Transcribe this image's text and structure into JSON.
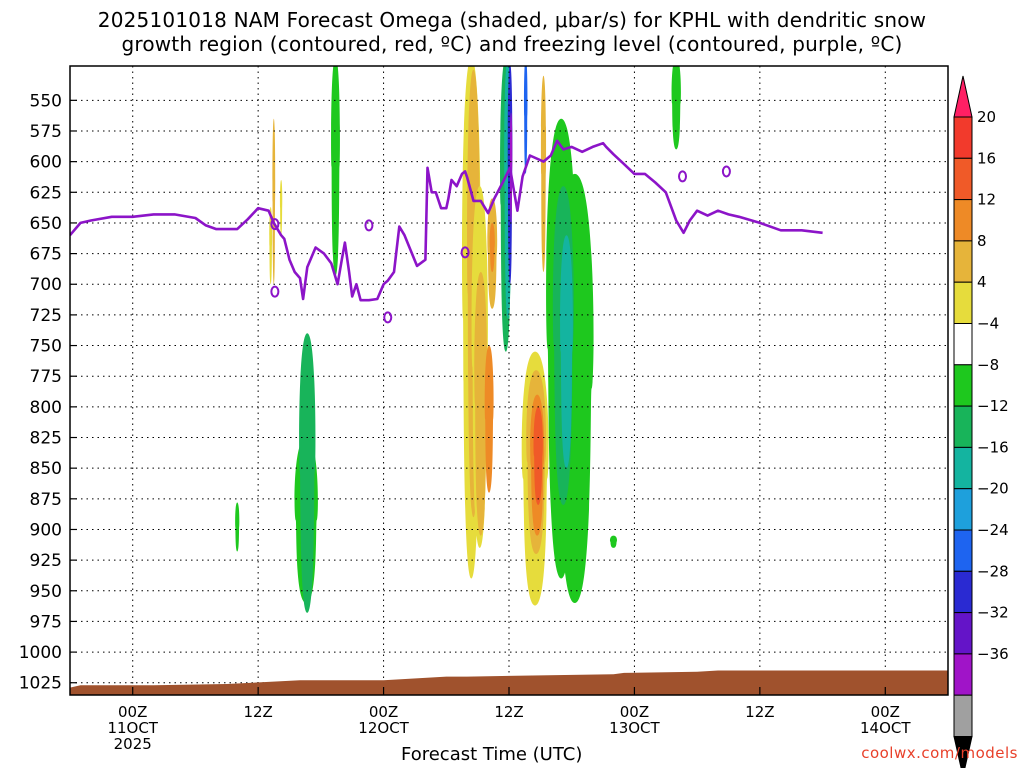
{
  "title": {
    "line1": "2025101018 NAM Forecast Omega (shaded, μbar/s) for KPHL with dendritic snow",
    "line2": "growth region (contoured, red, ºC) and freezing level (contoured, purple, ºC)"
  },
  "credit": "coolwx.com/models",
  "chart_data": {
    "type": "heatmap",
    "title": "2025101018 NAM Forecast Omega (shaded, μbar/s) for KPHL with dendritic snow growth region (contoured, red, ºC) and freezing level (contoured, purple, ºC)",
    "xlabel": "Forecast Time (UTC)",
    "ylabel": "",
    "x_axis": {
      "ticks": [
        {
          "hour": 6,
          "lines": [
            "00Z",
            "11OCT",
            "2025"
          ]
        },
        {
          "hour": 18,
          "lines": [
            "12Z"
          ]
        },
        {
          "hour": 30,
          "lines": [
            "00Z",
            "12OCT"
          ]
        },
        {
          "hour": 42,
          "lines": [
            "12Z"
          ]
        },
        {
          "hour": 54,
          "lines": [
            "00Z",
            "13OCT"
          ]
        },
        {
          "hour": 66,
          "lines": [
            "12Z"
          ]
        },
        {
          "hour": 78,
          "lines": [
            "00Z",
            "14OCT"
          ]
        }
      ],
      "range_hours": [
        0,
        84
      ]
    },
    "y_axis": {
      "unit": "hPa",
      "reversed": true,
      "ticks": [
        550,
        575,
        600,
        625,
        650,
        675,
        700,
        725,
        750,
        775,
        800,
        825,
        850,
        875,
        900,
        925,
        950,
        975,
        1000,
        1025
      ],
      "range": [
        522,
        1035
      ]
    },
    "grid": true,
    "colorbar": {
      "ticks": [
        "20",
        "16",
        "12",
        "8",
        "4",
        "−4",
        "−8",
        "−12",
        "−16",
        "−20",
        "−24",
        "−28",
        "−32",
        "−36"
      ],
      "bins": [
        {
          "color": "#ff1f64"
        },
        {
          "color": "#f23a2c"
        },
        {
          "color": "#f05a28"
        },
        {
          "color": "#ee8a26"
        },
        {
          "color": "#e6b43a"
        },
        {
          "color": "#e6dc3c"
        },
        {
          "color": "#ffffff"
        },
        {
          "color": "#1ec81e"
        },
        {
          "color": "#18b45a"
        },
        {
          "color": "#14b4a0"
        },
        {
          "color": "#1ea0dc"
        },
        {
          "color": "#1e64f0"
        },
        {
          "color": "#2a2ad2"
        },
        {
          "color": "#6414c8"
        },
        {
          "color": "#a014c8"
        },
        {
          "color": "#a0a0a0"
        },
        {
          "color": "#000000"
        }
      ]
    },
    "omega_regions": [
      {
        "hour": 19.2,
        "p_top": 637,
        "p_bottom": 700,
        "halfwidth": 0.12,
        "value": 5
      },
      {
        "hour": 19.5,
        "p_top": 565,
        "p_bottom": 700,
        "halfwidth": 0.12,
        "value": 6
      },
      {
        "hour": 20.2,
        "p_top": 615,
        "p_bottom": 660,
        "halfwidth": 0.1,
        "value": 5
      },
      {
        "hour": 16.0,
        "p_top": 878,
        "p_bottom": 918,
        "halfwidth": 0.18,
        "value": -6
      },
      {
        "hour": 22.6,
        "p_top": 825,
        "p_bottom": 960,
        "halfwidth": 1.0,
        "value": -6
      },
      {
        "hour": 22.7,
        "p_top": 740,
        "p_bottom": 968,
        "halfwidth": 0.7,
        "value": -8
      },
      {
        "hour": 22.8,
        "p_top": 760,
        "p_bottom": 928,
        "halfwidth": 0.45,
        "value": -10
      },
      {
        "hour": 25.4,
        "p_top": 515,
        "p_bottom": 693,
        "halfwidth": 0.38,
        "value": -6
      },
      {
        "hour": 38.4,
        "p_top": 515,
        "p_bottom": 940,
        "halfwidth": 0.8,
        "value": 5
      },
      {
        "hour": 38.6,
        "p_top": 525,
        "p_bottom": 890,
        "halfwidth": 0.55,
        "value": 7
      },
      {
        "hour": 39.2,
        "p_top": 620,
        "p_bottom": 915,
        "halfwidth": 0.7,
        "value": 5
      },
      {
        "hour": 39.3,
        "p_top": 690,
        "p_bottom": 905,
        "halfwidth": 0.55,
        "value": 7
      },
      {
        "hour": 40.1,
        "p_top": 750,
        "p_bottom": 870,
        "halfwidth": 0.38,
        "value": 11
      },
      {
        "hour": 40.4,
        "p_top": 630,
        "p_bottom": 720,
        "halfwidth": 0.42,
        "value": 7
      },
      {
        "hour": 40.4,
        "p_top": 650,
        "p_bottom": 690,
        "halfwidth": 0.22,
        "value": 9
      },
      {
        "hour": 41.7,
        "p_top": 515,
        "p_bottom": 755,
        "halfwidth": 0.5,
        "value": -8
      },
      {
        "hour": 41.9,
        "p_top": 515,
        "p_bottom": 728,
        "halfwidth": 0.32,
        "value": -14
      },
      {
        "hour": 42.1,
        "p_top": 520,
        "p_bottom": 700,
        "halfwidth": 0.2,
        "value": -26
      },
      {
        "hour": 42.2,
        "p_top": 560,
        "p_bottom": 650,
        "halfwidth": 0.1,
        "value": -34
      },
      {
        "hour": 43.6,
        "p_top": 515,
        "p_bottom": 610,
        "halfwidth": 0.15,
        "value": -22
      },
      {
        "hour": 44.5,
        "p_top": 755,
        "p_bottom": 962,
        "halfwidth": 1.15,
        "value": 5
      },
      {
        "hour": 44.6,
        "p_top": 770,
        "p_bottom": 920,
        "halfwidth": 0.85,
        "value": 7
      },
      {
        "hour": 44.7,
        "p_top": 790,
        "p_bottom": 905,
        "halfwidth": 0.6,
        "value": 9
      },
      {
        "hour": 44.8,
        "p_top": 800,
        "p_bottom": 880,
        "halfwidth": 0.4,
        "value": 13
      },
      {
        "hour": 45.3,
        "p_top": 530,
        "p_bottom": 690,
        "halfwidth": 0.22,
        "value": 6
      },
      {
        "hour": 47.0,
        "p_top": 565,
        "p_bottom": 940,
        "halfwidth": 1.3,
        "value": -6
      },
      {
        "hour": 48.3,
        "p_top": 610,
        "p_bottom": 960,
        "halfwidth": 1.6,
        "value": -6
      },
      {
        "hour": 47.2,
        "p_top": 620,
        "p_bottom": 880,
        "halfwidth": 0.9,
        "value": -10
      },
      {
        "hour": 47.5,
        "p_top": 660,
        "p_bottom": 850,
        "halfwidth": 0.55,
        "value": -14
      },
      {
        "hour": 52.0,
        "p_top": 905,
        "p_bottom": 915,
        "halfwidth": 0.3,
        "value": -6
      },
      {
        "hour": 58.0,
        "p_top": 515,
        "p_bottom": 590,
        "halfwidth": 0.4,
        "value": -6
      }
    ],
    "freezing_level_hpa": [
      [
        0,
        660
      ],
      [
        1,
        650
      ],
      [
        2,
        648
      ],
      [
        4,
        645
      ],
      [
        6,
        645
      ],
      [
        8,
        643
      ],
      [
        10,
        643
      ],
      [
        12,
        646
      ],
      [
        13,
        652
      ],
      [
        14,
        655
      ],
      [
        15,
        655
      ],
      [
        16,
        655
      ],
      [
        17,
        647
      ],
      [
        18,
        638
      ],
      [
        19,
        640
      ],
      [
        19.5,
        650
      ],
      [
        20.2,
        660
      ],
      [
        20.5,
        663
      ],
      [
        21,
        680
      ],
      [
        21.5,
        690
      ],
      [
        22,
        695
      ],
      [
        22.3,
        712
      ],
      [
        22.7,
        686
      ],
      [
        23.5,
        670
      ],
      [
        24.3,
        675
      ],
      [
        25,
        683
      ],
      [
        25.6,
        700
      ],
      [
        26,
        680
      ],
      [
        26.3,
        666
      ],
      [
        26.7,
        690
      ],
      [
        27,
        710
      ],
      [
        27.4,
        700
      ],
      [
        27.8,
        713
      ],
      [
        28.6,
        713
      ],
      [
        29.4,
        712
      ],
      [
        30,
        700
      ],
      [
        30.4,
        697
      ],
      [
        31,
        690
      ],
      [
        31.5,
        653
      ],
      [
        32,
        660
      ],
      [
        33.2,
        685
      ],
      [
        34,
        680
      ],
      [
        34.2,
        605
      ],
      [
        34.6,
        625
      ],
      [
        35,
        625
      ],
      [
        35.5,
        638
      ],
      [
        36,
        638
      ],
      [
        36.2,
        630
      ],
      [
        36.5,
        615
      ],
      [
        37,
        620
      ],
      [
        37.5,
        610
      ],
      [
        37.8,
        608
      ],
      [
        38,
        613
      ],
      [
        38.6,
        632
      ],
      [
        39.3,
        632
      ],
      [
        40,
        642
      ],
      [
        40.6,
        630
      ],
      [
        41.4,
        617
      ],
      [
        42.1,
        605
      ],
      [
        42.8,
        640
      ],
      [
        43.3,
        612
      ],
      [
        44,
        595
      ],
      [
        45.3,
        600
      ],
      [
        46,
        595
      ],
      [
        46.6,
        583
      ],
      [
        47.2,
        590
      ],
      [
        48,
        588
      ],
      [
        49,
        592
      ],
      [
        50,
        588
      ],
      [
        51,
        585
      ],
      [
        51.3,
        588
      ],
      [
        52,
        594
      ],
      [
        53,
        602
      ],
      [
        54,
        610
      ],
      [
        55,
        610
      ],
      [
        56,
        617
      ],
      [
        57,
        625
      ],
      [
        58,
        648
      ],
      [
        58.7,
        658
      ],
      [
        59.3,
        648
      ],
      [
        60,
        640
      ],
      [
        61,
        644
      ],
      [
        62,
        640
      ],
      [
        63,
        643
      ],
      [
        64,
        645
      ],
      [
        66,
        650
      ],
      [
        68,
        656
      ],
      [
        70,
        656
      ],
      [
        72,
        658
      ]
    ],
    "isolated_zero_contours": [
      {
        "hour": 19.6,
        "p": 651
      },
      {
        "hour": 19.6,
        "p": 706
      },
      {
        "hour": 28.6,
        "p": 652
      },
      {
        "hour": 30.4,
        "p": 727
      },
      {
        "hour": 37.8,
        "p": 674
      },
      {
        "hour": 58.6,
        "p": 612
      },
      {
        "hour": 62.8,
        "p": 608
      }
    ],
    "ground_surface_hpa": [
      [
        0,
        1029
      ],
      [
        1,
        1027
      ],
      [
        8,
        1027
      ],
      [
        15,
        1026
      ],
      [
        22,
        1023
      ],
      [
        30,
        1023
      ],
      [
        36,
        1020
      ],
      [
        38,
        1020
      ],
      [
        45,
        1019
      ],
      [
        52,
        1018
      ],
      [
        53,
        1017
      ],
      [
        60,
        1016
      ],
      [
        62,
        1015
      ],
      [
        72,
        1015
      ]
    ]
  }
}
